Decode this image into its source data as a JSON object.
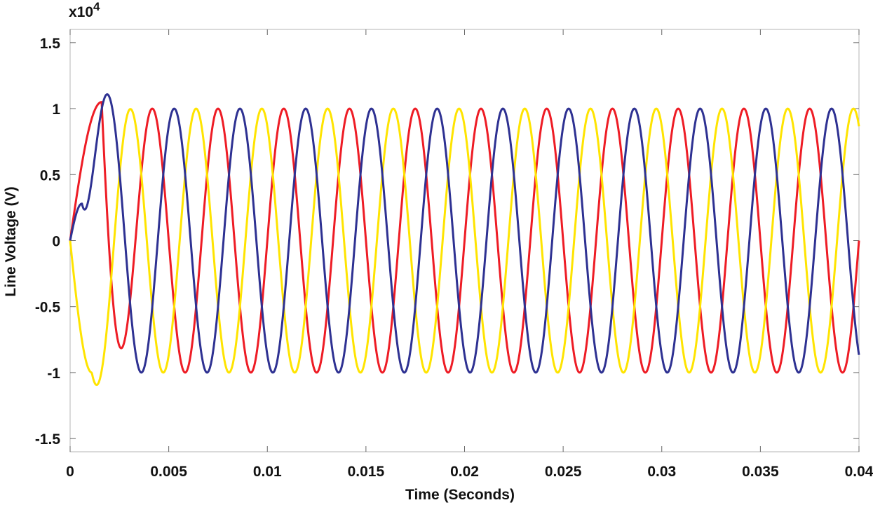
{
  "chart_data": {
    "type": "line",
    "title": "",
    "xlabel": "Time (Seconds)",
    "ylabel": "Line Voltage (V)",
    "y_multiplier_label": "x10",
    "y_multiplier_exponent": "4",
    "xlim": [
      0,
      0.04
    ],
    "ylim": [
      -1.6,
      1.6
    ],
    "x_ticks": [
      {
        "value": 0,
        "label": "0"
      },
      {
        "value": 0.005,
        "label": "0.005"
      },
      {
        "value": 0.01,
        "label": "0.01"
      },
      {
        "value": 0.015,
        "label": "0.015"
      },
      {
        "value": 0.02,
        "label": "0.02"
      },
      {
        "value": 0.025,
        "label": "0.025"
      },
      {
        "value": 0.03,
        "label": "0.03"
      },
      {
        "value": 0.035,
        "label": "0.035"
      },
      {
        "value": 0.04,
        "label": "0.04"
      }
    ],
    "y_ticks": [
      {
        "value": 1.5,
        "label": "1.5"
      },
      {
        "value": 1,
        "label": "1"
      },
      {
        "value": 0.5,
        "label": "0.5"
      },
      {
        "value": 0,
        "label": "0"
      },
      {
        "value": -0.5,
        "label": "-0.5"
      },
      {
        "value": -1,
        "label": "-1"
      },
      {
        "value": -1.5,
        "label": "-1.5"
      }
    ],
    "grid": false,
    "legend": "none",
    "series": [
      {
        "color": "#ee1c25",
        "amplitude": 1.0,
        "frequency_hz": 300,
        "phase_deg": 0,
        "start_peak": 1.05,
        "transient_end_time": 0.0016
      },
      {
        "color": "#ffe400",
        "amplitude": 1.0,
        "frequency_hz": 300,
        "phase_deg": 240,
        "start_peak": -1.0,
        "transient_end_time": 0.0011
      },
      {
        "color": "#2e3192",
        "amplitude": 1.0,
        "frequency_hz": 300,
        "phase_deg": 120,
        "start_peak": 0.28,
        "transient_end_time": 0.0006
      }
    ]
  }
}
